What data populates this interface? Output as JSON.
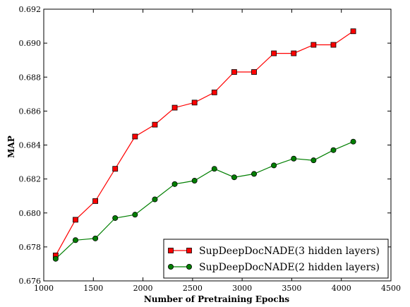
{
  "chart_data": {
    "type": "line",
    "title": "",
    "xlabel": "Number of Pretraining Epochs",
    "ylabel": "MAP",
    "xlim": [
      1000,
      4500
    ],
    "ylim": [
      0.676,
      0.692
    ],
    "xticks": [
      "1000",
      "1500",
      "2000",
      "2500",
      "3000",
      "3500",
      "4000",
      "4500"
    ],
    "yticks": [
      "0.676",
      "0.678",
      "0.680",
      "0.682",
      "0.684",
      "0.686",
      "0.688",
      "0.690",
      "0.692"
    ],
    "grid": false,
    "legend_position": "lower-right",
    "series": [
      {
        "name": "SupDeepDocNADE(3 hidden layers)",
        "color": "#ff0000",
        "marker": "square",
        "x": [
          1120,
          1320,
          1520,
          1720,
          1920,
          2120,
          2320,
          2520,
          2720,
          2920,
          3120,
          3320,
          3520,
          3720,
          3920,
          4120
        ],
        "y": [
          0.6775,
          0.6796,
          0.6807,
          0.6826,
          0.6845,
          0.6852,
          0.6862,
          0.6865,
          0.6871,
          0.6883,
          0.6883,
          0.6894,
          0.6894,
          0.6899,
          0.6899,
          0.6907
        ]
      },
      {
        "name": "SupDeepDocNADE(2 hidden layers)",
        "color": "#007f00",
        "marker": "circle",
        "x": [
          1120,
          1320,
          1520,
          1720,
          1920,
          2120,
          2320,
          2520,
          2720,
          2920,
          3120,
          3320,
          3520,
          3720,
          3920,
          4120
        ],
        "y": [
          0.6773,
          0.6784,
          0.6785,
          0.6797,
          0.6799,
          0.6808,
          0.6817,
          0.6819,
          0.6826,
          0.6821,
          0.6823,
          0.6828,
          0.6832,
          0.6831,
          0.6837,
          0.6842
        ]
      }
    ]
  }
}
